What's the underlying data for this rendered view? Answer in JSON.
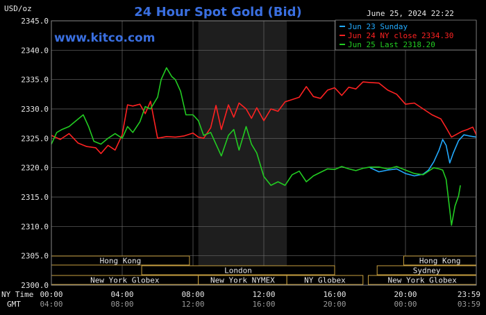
{
  "chart_data": {
    "type": "line",
    "title": "24 Hour Spot Gold (Bid)",
    "brand": "www.kitco.com",
    "datetime": "June 25, 2024 22:22",
    "ylabel": "USD/oz",
    "ylim": [
      2300,
      2345
    ],
    "yticks": [
      "2300.0",
      "2305.0",
      "2310.0",
      "2315.0",
      "2320.0",
      "2325.0",
      "2330.0",
      "2335.0",
      "2340.0",
      "2345.0"
    ],
    "xlim": [
      0,
      24
    ],
    "xticks": [
      {
        "h": 0,
        "ny": "00:00",
        "gmt": "04:00"
      },
      {
        "h": 4,
        "ny": "04:00",
        "gmt": "08:00"
      },
      {
        "h": 8,
        "ny": "08:00",
        "gmt": "12:00"
      },
      {
        "h": 12,
        "ny": "12:00",
        "gmt": "16:00"
      },
      {
        "h": 16,
        "ny": "16:00",
        "gmt": "20:00"
      },
      {
        "h": 20,
        "ny": "20:00",
        "gmt": "00:00"
      },
      {
        "h": 23.98,
        "ny": "23:59",
        "gmt": "03:59"
      }
    ],
    "x_row_labels": {
      "ny": "NY Time",
      "gmt": "GMT"
    },
    "shaded_region": [
      8.3,
      13.3
    ],
    "grid": true,
    "legend_position": "top-right",
    "series": [
      {
        "name": "Jun 23 Sunday",
        "color": "#22aaff",
        "x": [
          18.0,
          18.5,
          19.0,
          19.5,
          20.0,
          20.5,
          21.0,
          21.3,
          21.6,
          21.9,
          22.1,
          22.3,
          22.5,
          22.7,
          23.0,
          23.3,
          23.6,
          24.0
        ],
        "y": [
          2320.0,
          2319.3,
          2319.6,
          2319.8,
          2319.0,
          2318.6,
          2318.9,
          2319.6,
          2321.0,
          2323.0,
          2324.8,
          2323.8,
          2320.8,
          2322.5,
          2324.6,
          2325.6,
          2325.4,
          2325.2
        ]
      },
      {
        "name": "Jun 24 NY close 2334.30",
        "color": "#ff2222",
        "x": [
          0.0,
          0.5,
          1.0,
          1.5,
          2.0,
          2.5,
          2.8,
          3.2,
          3.6,
          4.0,
          4.3,
          4.6,
          5.0,
          5.3,
          5.6,
          6.0,
          6.5,
          7.0,
          7.5,
          8.0,
          8.3,
          8.6,
          9.0,
          9.3,
          9.6,
          10.0,
          10.3,
          10.6,
          11.0,
          11.3,
          11.6,
          12.0,
          12.4,
          12.8,
          13.2,
          13.6,
          14.0,
          14.4,
          14.8,
          15.2,
          15.6,
          16.0,
          16.4,
          16.8,
          17.2,
          17.6,
          18.0,
          18.5,
          19.0,
          19.5,
          20.0,
          20.5,
          21.0,
          21.5,
          22.0,
          22.3,
          22.6,
          22.9,
          23.2,
          23.5,
          23.8,
          24.0
        ],
        "y": [
          2325.5,
          2324.8,
          2325.8,
          2324.2,
          2323.6,
          2323.4,
          2322.4,
          2323.8,
          2323.0,
          2325.6,
          2330.7,
          2330.5,
          2330.8,
          2329.2,
          2331.3,
          2325.0,
          2325.3,
          2325.2,
          2325.4,
          2325.9,
          2325.2,
          2325.0,
          2326.8,
          2330.6,
          2326.5,
          2330.7,
          2328.6,
          2331.0,
          2330.0,
          2328.4,
          2330.2,
          2328.0,
          2330.0,
          2329.6,
          2331.2,
          2331.6,
          2332.0,
          2333.8,
          2332.1,
          2331.8,
          2333.2,
          2333.6,
          2332.3,
          2333.7,
          2333.4,
          2334.6,
          2334.5,
          2334.4,
          2333.2,
          2332.5,
          2330.8,
          2331.0,
          2330.0,
          2329.0,
          2328.3,
          2326.8,
          2325.2,
          2325.7,
          2326.2,
          2326.5,
          2326.9,
          2325.6
        ]
      },
      {
        "name": "Jun 25 Last 2318.20",
        "color": "#22cc22",
        "x": [
          0.0,
          0.3,
          0.6,
          1.0,
          1.4,
          1.8,
          2.1,
          2.4,
          2.8,
          3.2,
          3.6,
          4.0,
          4.3,
          4.6,
          5.0,
          5.3,
          5.6,
          6.0,
          6.2,
          6.5,
          6.8,
          7.0,
          7.3,
          7.6,
          8.0,
          8.3,
          8.6,
          9.0,
          9.3,
          9.6,
          10.0,
          10.3,
          10.6,
          11.0,
          11.3,
          11.6,
          12.0,
          12.4,
          12.8,
          13.2,
          13.6,
          14.0,
          14.4,
          14.8,
          15.2,
          15.6,
          16.0,
          16.4,
          16.8,
          17.2,
          17.6,
          18.0,
          18.5,
          19.0,
          19.5,
          20.0,
          20.5,
          21.0,
          21.3,
          21.6,
          21.9,
          22.1,
          22.3,
          22.5,
          22.6,
          22.8,
          23.0,
          23.1
        ],
        "y": [
          2324.0,
          2326.0,
          2326.5,
          2327.0,
          2328.0,
          2329.0,
          2327.0,
          2324.5,
          2324.0,
          2325.0,
          2325.8,
          2325.0,
          2327.0,
          2326.0,
          2327.8,
          2330.4,
          2330.0,
          2332.0,
          2335.0,
          2337.0,
          2335.5,
          2335.0,
          2333.0,
          2329.0,
          2329.0,
          2328.0,
          2325.5,
          2326.0,
          2324.0,
          2322.0,
          2325.5,
          2326.5,
          2323.0,
          2327.0,
          2324.0,
          2322.5,
          2318.5,
          2317.0,
          2317.6,
          2317.0,
          2318.8,
          2319.4,
          2317.6,
          2318.6,
          2319.2,
          2319.8,
          2319.7,
          2320.2,
          2319.8,
          2319.5,
          2319.9,
          2320.1,
          2320.1,
          2319.8,
          2320.2,
          2319.6,
          2319.0,
          2318.8,
          2319.4,
          2320.0,
          2319.8,
          2319.6,
          2318.0,
          2312.8,
          2310.2,
          2313.5,
          2315.2,
          2317.0
        ]
      }
    ],
    "sessions": [
      {
        "label": "Hong Kong",
        "start": 0,
        "end": 7.8,
        "row": 0,
        "align": "center"
      },
      {
        "label": "London",
        "start": 5.1,
        "end": 16.0,
        "row": 1,
        "align": "center"
      },
      {
        "label": "New York Globex",
        "start": 0,
        "end": 8.3,
        "row": 2,
        "align": "center"
      },
      {
        "label": "New York NYMEX",
        "start": 8.3,
        "end": 13.3,
        "row": 2,
        "align": "center"
      },
      {
        "label": "NY Globex",
        "start": 13.3,
        "end": 17.6,
        "row": 2,
        "align": "center"
      },
      {
        "label": "Hong Kong",
        "start": 19.9,
        "end": 24.0,
        "row": 0,
        "align": "center"
      },
      {
        "label": "Sydney",
        "start": 18.4,
        "end": 24.0,
        "row": 1,
        "align": "center"
      },
      {
        "label": "New York Globex",
        "start": 17.9,
        "end": 24.0,
        "row": 2,
        "align": "center"
      }
    ]
  }
}
